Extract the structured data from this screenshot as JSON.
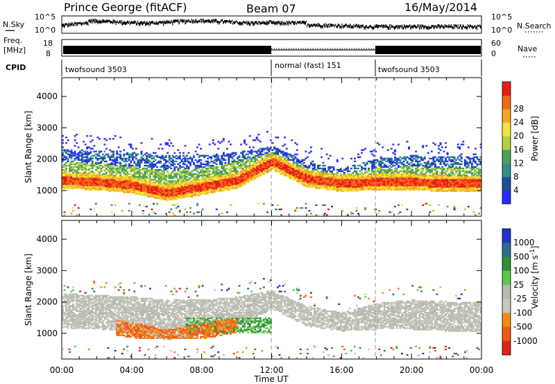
{
  "header": {
    "station": "Prince George (fitACF)",
    "beam": "Beam 07",
    "date": "16/May/2014"
  },
  "top_panels": {
    "nsky_label": "N.Sky",
    "nsky_ticks": [
      "10^5",
      "10^0"
    ],
    "nsearch_label": "N.Search",
    "nsearch_ticks": [
      "10^5",
      "10^0"
    ],
    "freq_label": "Freq.",
    "freq_unit": "[MHz]",
    "freq_ticks": [
      "18",
      "8"
    ],
    "nave_label": "Nave",
    "nave_ticks": [
      "60",
      "0"
    ],
    "cpid_label": "CPID",
    "cpid_segments": [
      {
        "label": "twofsound 3503",
        "start_hour": 0,
        "end_hour": 12
      },
      {
        "label": "normal (fast) 151",
        "start_hour": 12,
        "end_hour": 18
      },
      {
        "label": "twofsound 3503",
        "start_hour": 18,
        "end_hour": 24
      }
    ]
  },
  "chart_data": [
    {
      "type": "heatmap",
      "name": "power",
      "ylabel": "Slant Range [km]",
      "yticks": [
        1000,
        2000,
        3000,
        4000
      ],
      "ylim": [
        180,
        4600
      ],
      "xlim": [
        0,
        24
      ],
      "colorbar": {
        "label": "Power [dB]",
        "ticks": [
          "4",
          "8",
          "12",
          "16",
          "20",
          "24",
          "28"
        ],
        "colors": [
          "#2a2bff",
          "#1f4f96",
          "#2f8f8f",
          "#4e9f5a",
          "#b3cf3f",
          "#f2e53a",
          "#f5a623",
          "#f06a1a",
          "#e81c16"
        ]
      },
      "bands": [
        {
          "hour": 0,
          "main_km": 1300,
          "upper_km": 1900,
          "top_km": 2300
        },
        {
          "hour": 2,
          "main_km": 1250,
          "upper_km": 1850,
          "top_km": 2250
        },
        {
          "hour": 4,
          "main_km": 1150,
          "upper_km": 1750,
          "top_km": 2200
        },
        {
          "hour": 6,
          "main_km": 900,
          "upper_km": 1600,
          "top_km": 2100
        },
        {
          "hour": 8,
          "main_km": 1100,
          "upper_km": 1700,
          "top_km": 2100
        },
        {
          "hour": 10,
          "main_km": 1300,
          "upper_km": 1900,
          "top_km": 2200
        },
        {
          "hour": 12,
          "main_km": 1900,
          "upper_km": 2200,
          "top_km": 2400
        },
        {
          "hour": 14,
          "main_km": 1350,
          "upper_km": 1700,
          "top_km": 1900
        },
        {
          "hour": 16,
          "main_km": 1200,
          "upper_km": 1500,
          "top_km": 1700
        },
        {
          "hour": 18,
          "main_km": 1250,
          "upper_km": 1700,
          "top_km": 2000
        },
        {
          "hour": 20,
          "main_km": 1250,
          "upper_km": 1750,
          "top_km": 2100
        },
        {
          "hour": 22,
          "main_km": 1200,
          "upper_km": 1700,
          "top_km": 2050
        },
        {
          "hour": 24,
          "main_km": 1200,
          "upper_km": 1700,
          "top_km": 2050
        }
      ]
    },
    {
      "type": "heatmap",
      "name": "velocity",
      "ylabel": "Slant Range [km]",
      "yticks": [
        1000,
        2000,
        3000,
        4000
      ],
      "ylim": [
        180,
        4600
      ],
      "xlim": [
        0,
        24
      ],
      "colorbar": {
        "label": "Velocity [m s^-1]",
        "ticks": [
          "1000",
          "500",
          "100",
          "25",
          "-25",
          "-100",
          "-500",
          "-1000"
        ],
        "colors": [
          "#2433c9",
          "#2b6b8f",
          "#2f8f3a",
          "#58c84a",
          "#b9b9b0",
          "#c8c8bd",
          "#f28a1a",
          "#f05a14",
          "#e0241a"
        ]
      },
      "features": [
        {
          "label": "ground scatter band",
          "hour_start": 0,
          "hour_end": 24,
          "km_low": 1300,
          "km_high": 2200
        },
        {
          "label": "negative velocity patch",
          "hour_start": 3,
          "hour_end": 10,
          "km_low": 800,
          "km_high": 1500
        },
        {
          "label": "positive velocity patch",
          "hour_start": 7,
          "hour_end": 12,
          "km_low": 1000,
          "km_high": 1600
        }
      ]
    }
  ],
  "x_axis": {
    "label": "Time UT",
    "ticks": [
      "00:00",
      "04:00",
      "08:00",
      "12:00",
      "16:00",
      "20:00",
      "00:00"
    ]
  }
}
